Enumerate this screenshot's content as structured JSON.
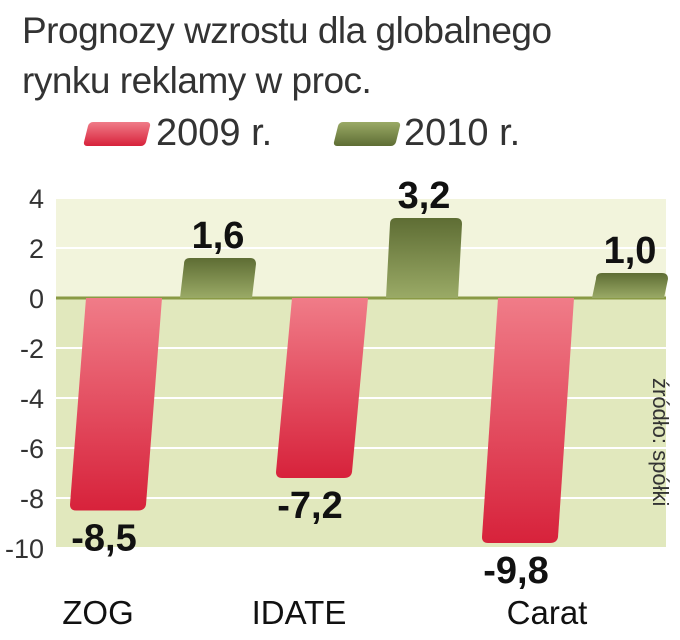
{
  "title_lines": [
    "Prognozy wzrostu dla globalnego",
    "rynku reklamy w proc."
  ],
  "source_label": "źródło: spółki",
  "colors": {
    "series_2009": "#d7223b",
    "series_2009_light": "#f07c88",
    "series_2010": "#5e6d34",
    "series_2010_light": "#9aaa66",
    "band_pos": "#f2f4dc",
    "band_neg": "#e1e8bd",
    "zero_line": "#8a9a45"
  },
  "chart_data": {
    "type": "bar",
    "title": "Prognozy wzrostu dla globalnego rynku reklamy w proc.",
    "categories": [
      "ZOG",
      "IDATE",
      "Carat"
    ],
    "series": [
      {
        "name": "2009 r.",
        "values": [
          -8.5,
          -7.2,
          -9.8
        ],
        "labels": [
          "-8,5",
          "-7,2",
          "-9,8"
        ]
      },
      {
        "name": "2010 r.",
        "values": [
          1.6,
          3.2,
          1.0
        ],
        "labels": [
          "1,6",
          "3,2",
          "1,0"
        ]
      }
    ],
    "ylim": [
      -10,
      4
    ],
    "yticks": [
      4,
      2,
      0,
      -2,
      -4,
      -6,
      -8,
      -10
    ],
    "ytick_labels": [
      "4",
      "2",
      "0",
      "-2",
      "-4",
      "-6",
      "-8",
      "-10"
    ],
    "grid": true,
    "legend_position": "top"
  }
}
